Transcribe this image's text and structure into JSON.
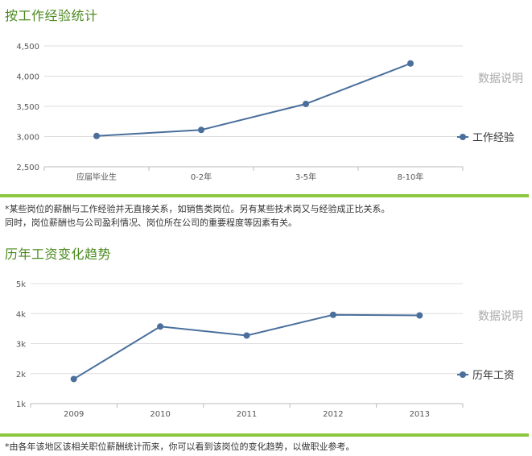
{
  "sections": [
    {
      "title": "按工作经验统计",
      "data_note_link": "数据说明",
      "notes": [
        "*某些岗位的薪酬与工作经验并无直接关系，如销售类岗位。另有某些技术岗又与经验成正比关系。",
        "同时，岗位薪酬也与公司盈利情况、岗位所在公司的重要程度等因素有关。"
      ]
    },
    {
      "title": "历年工资变化趋势",
      "data_note_link": "数据说明",
      "notes": [
        "*由各年该地区该相关职位薪酬统计而来，你可以看到该岗位的变化趋势，以做职业参考。"
      ]
    }
  ],
  "colors": {
    "title": "#4b8a1f",
    "accent_bar": "#8dc63f",
    "series": "#4a6f9c",
    "grid": "#dddddd",
    "side_link": "#aaaaaa"
  },
  "chart_data": [
    {
      "type": "line",
      "categories": [
        "应届毕业生",
        "0-2年",
        "3-5年",
        "8-10年"
      ],
      "series": [
        {
          "name": "工作经验",
          "values": [
            3010,
            3110,
            3540,
            4210
          ]
        }
      ],
      "yticks": [
        "2,500",
        "3,000",
        "3,500",
        "4,000",
        "4,500"
      ],
      "ylim": [
        2500,
        4500
      ],
      "grid": true,
      "legend": "right"
    },
    {
      "type": "line",
      "categories": [
        "2009",
        "2010",
        "2011",
        "2012",
        "2013"
      ],
      "series": [
        {
          "name": "历年工资",
          "values": [
            1.82,
            3.57,
            3.27,
            3.96,
            3.94
          ]
        }
      ],
      "yticks": [
        "1k",
        "2k",
        "3k",
        "4k",
        "5k"
      ],
      "ylim": [
        1,
        5
      ],
      "grid": true,
      "legend": "right"
    }
  ]
}
